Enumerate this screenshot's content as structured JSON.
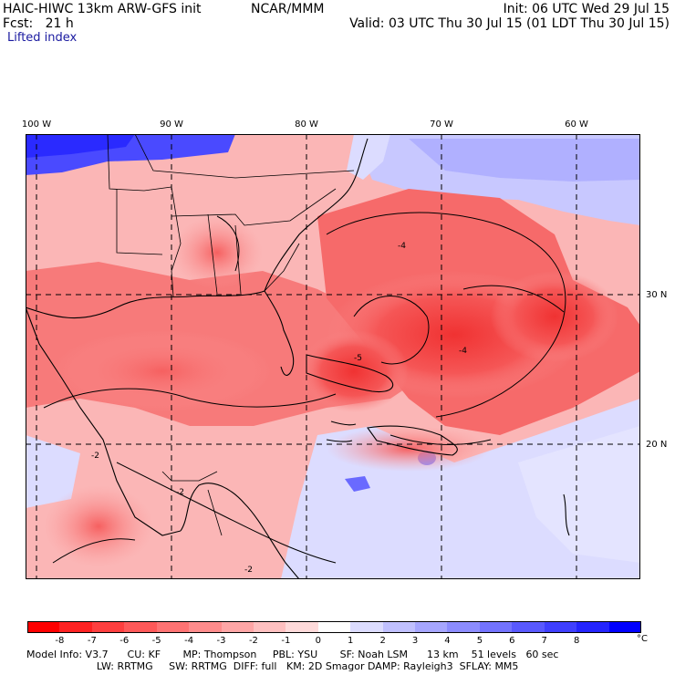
{
  "header": {
    "model_title": "HAIC-HIWC 13km ARW-GFS init",
    "org": "NCAR/MMM",
    "init": "Init: 06 UTC Wed 29 Jul 15",
    "forecast": "Fcst:   21 h",
    "valid": "Valid: 03 UTC Thu 30 Jul 15 (01 LDT Thu 30 Jul 15)",
    "field_name": "Lifted index"
  },
  "map": {
    "lon_labels": [
      "100 W",
      "90 W",
      "80 W",
      "70 W",
      "60 W"
    ],
    "lat_labels": [
      "30 N",
      "20 N"
    ],
    "contour_labels": [
      "-4",
      "-4",
      "-5",
      "-2",
      "-2",
      "-2"
    ]
  },
  "colorbar": {
    "colors": [
      "#ff0000",
      "#ff2222",
      "#ff3f3f",
      "#ff5959",
      "#ff7373",
      "#ff8c8c",
      "#ffa6a6",
      "#ffc0c0",
      "#ffdada",
      "#ffffff",
      "#dcdcff",
      "#c0c0ff",
      "#a6a6ff",
      "#8c8cff",
      "#7373ff",
      "#5959ff",
      "#3f3fff",
      "#2424ff",
      "#0000ff"
    ],
    "labels": [
      "-8",
      "-7",
      "-6",
      "-5",
      "-4",
      "-3",
      "-2",
      "-1",
      "0",
      "1",
      "2",
      "3",
      "4",
      "5",
      "6",
      "7",
      "8"
    ],
    "unit": "°C"
  },
  "model_info": {
    "line1": "Model Info: V3.7      CU: KF       MP: Thompson     PBL: YSU       SF: Noah LSM      13 km    51 levels   60 sec",
    "line2": "                      LW: RRTMG     SW: RRTMG  DIFF: full   KM: 2D Smagor DAMP: Rayleigh3  SFLAY: MM5"
  },
  "colors": {
    "unstable": "#ff3f3f",
    "stable": "#3f3fff",
    "neutral": "#ffffff"
  }
}
